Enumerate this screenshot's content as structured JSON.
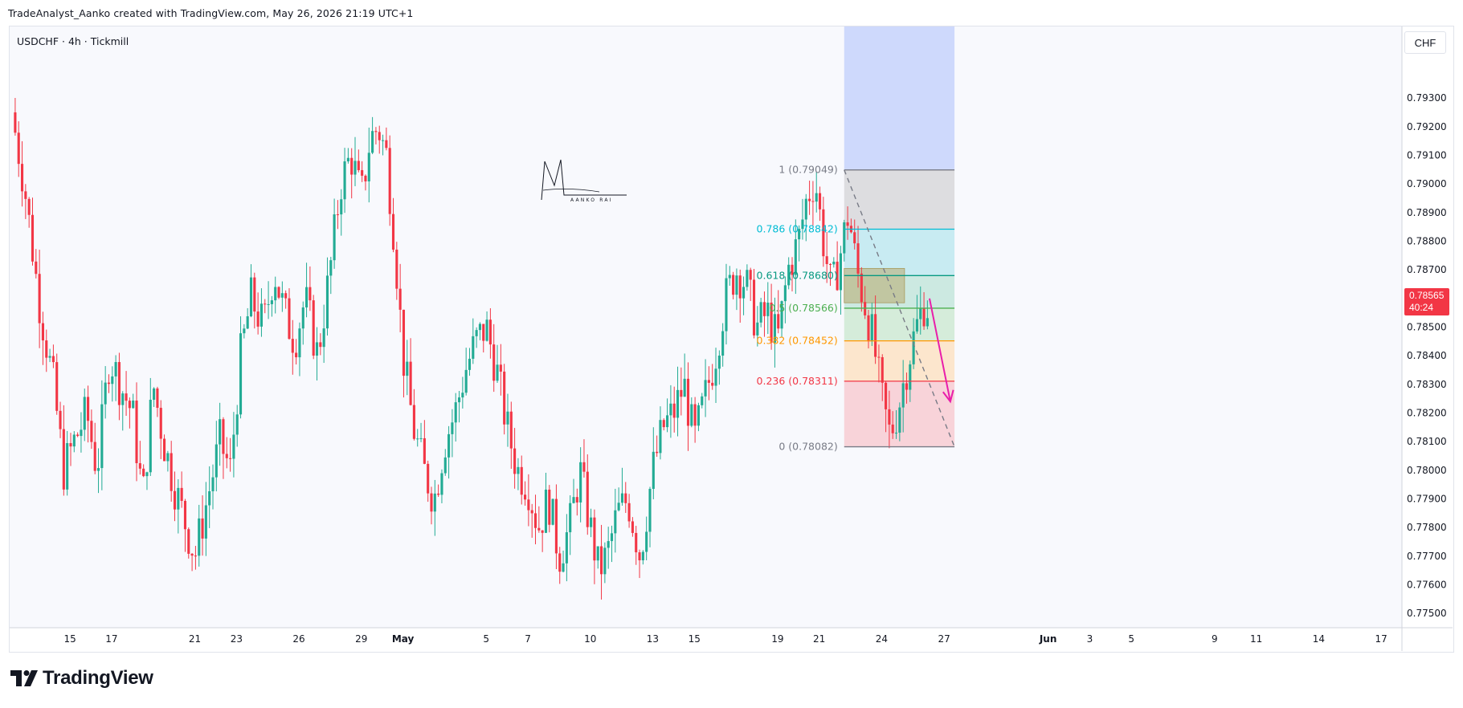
{
  "header": {
    "attribution": "TradeAnalyst_Aanko created with TradingView.com, May 26, 2026 21:19 UTC+1"
  },
  "legend": {
    "symbol_line": "USDCHF · 4h · Tickmill"
  },
  "price_axis": {
    "currency": "CHF",
    "last_price": "0.78565",
    "countdown": "40:24"
  },
  "footer": {
    "brand": "TradingView",
    "logo_icon": "tradingview-logo-icon"
  },
  "watermark": {
    "text": "AANKO RAI",
    "icon": "signature-logo-icon"
  },
  "colors": {
    "bull": "#22ab94",
    "bear": "#f23645",
    "fib_1": "#787b86",
    "fib_0786": "#00bcd4",
    "fib_0618": "#089981",
    "fib_05": "#4caf50",
    "fib_0382": "#ff9800",
    "fib_0236": "#f23645",
    "fib_0": "#787b86",
    "target_zone": "#c7d4fb",
    "arrow": "#e91eaa",
    "supply_zone": "#b8a96e"
  },
  "chart_data": {
    "type": "candlestick",
    "symbol": "USDCHF",
    "timeframe": "4h",
    "ylim": [
      0.7745,
      0.7955
    ],
    "y_ticks": [
      "0.79300",
      "0.79200",
      "0.79100",
      "0.79000",
      "0.78900",
      "0.78800",
      "0.78700",
      "0.78600",
      "0.78500",
      "0.78400",
      "0.78300",
      "0.78200",
      "0.78100",
      "0.78000",
      "0.77900",
      "0.77800",
      "0.77700",
      "0.77600",
      "0.77500"
    ],
    "x_ticks": [
      {
        "label": "15",
        "day": 15
      },
      {
        "label": "17",
        "day": 17
      },
      {
        "label": "21",
        "day": 21
      },
      {
        "label": "23",
        "day": 23
      },
      {
        "label": "26",
        "day": 26
      },
      {
        "label": "29",
        "day": 29
      },
      {
        "label": "May",
        "day": 31
      },
      {
        "label": "5",
        "day": 35
      },
      {
        "label": "7",
        "day": 37
      },
      {
        "label": "10",
        "day": 40
      },
      {
        "label": "13",
        "day": 43
      },
      {
        "label": "15",
        "day": 45
      },
      {
        "label": "19",
        "day": 49
      },
      {
        "label": "21",
        "day": 51
      },
      {
        "label": "24",
        "day": 54
      },
      {
        "label": "27",
        "day": 57
      },
      {
        "label": "Jun",
        "day": 62
      },
      {
        "label": "3",
        "day": 64
      },
      {
        "label": "5",
        "day": 66
      },
      {
        "label": "9",
        "day": 70
      },
      {
        "label": "11",
        "day": 72
      },
      {
        "label": "14",
        "day": 75
      },
      {
        "label": "17",
        "day": 78
      }
    ],
    "x_day_range": [
      12.1,
      79.0
    ],
    "close_path": [
      [
        12.2,
        0.7925
      ],
      [
        12.8,
        0.79
      ],
      [
        13.5,
        0.786
      ],
      [
        14.2,
        0.783
      ],
      [
        14.7,
        0.78
      ],
      [
        15.2,
        0.781
      ],
      [
        15.8,
        0.782
      ],
      [
        16.3,
        0.78
      ],
      [
        16.9,
        0.784
      ],
      [
        17.4,
        0.783
      ],
      [
        18.0,
        0.782
      ],
      [
        18.5,
        0.779
      ],
      [
        19.0,
        0.783
      ],
      [
        19.5,
        0.781
      ],
      [
        20.0,
        0.7795
      ],
      [
        20.6,
        0.778
      ],
      [
        21.0,
        0.777
      ],
      [
        21.6,
        0.779
      ],
      [
        22.2,
        0.781
      ],
      [
        22.7,
        0.78
      ],
      [
        23.2,
        0.784
      ],
      [
        23.7,
        0.786
      ],
      [
        24.3,
        0.785
      ],
      [
        24.8,
        0.787
      ],
      [
        25.3,
        0.7855
      ],
      [
        25.8,
        0.7845
      ],
      [
        26.3,
        0.786
      ],
      [
        26.9,
        0.784
      ],
      [
        27.5,
        0.787
      ],
      [
        28.0,
        0.79
      ],
      [
        28.5,
        0.791
      ],
      [
        29.0,
        0.7895
      ],
      [
        29.4,
        0.7915
      ],
      [
        29.8,
        0.792
      ],
      [
        30.2,
        0.791
      ],
      [
        30.6,
        0.788
      ],
      [
        31.0,
        0.784
      ],
      [
        31.5,
        0.7815
      ],
      [
        32.0,
        0.78
      ],
      [
        32.5,
        0.779
      ],
      [
        33.0,
        0.781
      ],
      [
        33.5,
        0.782
      ],
      [
        34.0,
        0.7835
      ],
      [
        34.5,
        0.7845
      ],
      [
        35.0,
        0.785
      ],
      [
        35.5,
        0.7835
      ],
      [
        36.0,
        0.7815
      ],
      [
        36.5,
        0.78
      ],
      [
        37.0,
        0.7795
      ],
      [
        37.5,
        0.778
      ],
      [
        38.0,
        0.779
      ],
      [
        38.5,
        0.777
      ],
      [
        39.0,
        0.778
      ],
      [
        39.5,
        0.78
      ],
      [
        40.0,
        0.778
      ],
      [
        40.4,
        0.7765
      ],
      [
        40.8,
        0.777
      ],
      [
        41.3,
        0.7785
      ],
      [
        41.8,
        0.779
      ],
      [
        42.4,
        0.777
      ],
      [
        43.0,
        0.78
      ],
      [
        43.5,
        0.7815
      ],
      [
        44.0,
        0.782
      ],
      [
        44.5,
        0.783
      ],
      [
        45.0,
        0.781
      ],
      [
        45.5,
        0.7825
      ],
      [
        46.0,
        0.784
      ],
      [
        46.5,
        0.786
      ],
      [
        47.0,
        0.787
      ],
      [
        47.5,
        0.7865
      ],
      [
        48.0,
        0.785
      ],
      [
        48.5,
        0.7855
      ],
      [
        49.0,
        0.7845
      ],
      [
        49.5,
        0.787
      ],
      [
        50.0,
        0.788
      ],
      [
        50.4,
        0.7895
      ],
      [
        50.8,
        0.7902
      ],
      [
        51.2,
        0.788
      ],
      [
        51.6,
        0.7862
      ],
      [
        52.0,
        0.7875
      ],
      [
        52.4,
        0.789
      ],
      [
        52.8,
        0.787
      ],
      [
        53.2,
        0.7858
      ],
      [
        53.6,
        0.7845
      ],
      [
        54.0,
        0.7825
      ],
      [
        54.4,
        0.7812
      ],
      [
        54.8,
        0.7822
      ],
      [
        55.2,
        0.7836
      ],
      [
        55.6,
        0.7848
      ],
      [
        56.0,
        0.7858
      ],
      [
        56.3,
        0.78565
      ]
    ],
    "fibonacci": [
      {
        "ratio": "1",
        "price": "0.79049",
        "value": 0.79049
      },
      {
        "ratio": "0.786",
        "price": "0.78842",
        "value": 0.78842
      },
      {
        "ratio": "0.618",
        "price": "0.78680",
        "value": 0.7868
      },
      {
        "ratio": "0.5",
        "price": "0.78566",
        "value": 0.78566
      },
      {
        "ratio": "0.382",
        "price": "0.78452",
        "value": 0.78452
      },
      {
        "ratio": "0.236",
        "price": "0.78311",
        "value": 0.78311
      },
      {
        "ratio": "0",
        "price": "0.78082",
        "value": 0.78082
      }
    ],
    "fib_day_range": [
      52.2,
      57.5
    ],
    "target_zone": {
      "day_start": 52.2,
      "day_end": 57.5,
      "price_low": 0.79049,
      "price_high": 0.7955
    },
    "supply_zone": {
      "day_start": 52.2,
      "day_end": 55.1,
      "price_low": 0.78585,
      "price_high": 0.78705
    },
    "trend_line": {
      "from": [
        52.2,
        0.79049
      ],
      "to": [
        57.5,
        0.78082
      ]
    },
    "projection_arrow": {
      "from": [
        56.3,
        0.786
      ],
      "to": [
        57.3,
        0.7824
      ]
    }
  }
}
